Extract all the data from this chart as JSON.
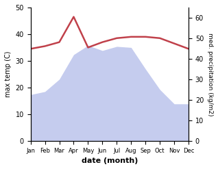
{
  "months": [
    "Jan",
    "Feb",
    "Mar",
    "Apr",
    "May",
    "Jun",
    "Jul",
    "Aug",
    "Sep",
    "Oct",
    "Nov",
    "Dec"
  ],
  "temperature": [
    34.5,
    35.5,
    37.0,
    46.5,
    35.0,
    37.0,
    38.5,
    39.0,
    39.0,
    38.5,
    36.5,
    34.5
  ],
  "precipitation": [
    22.5,
    24.0,
    30.0,
    42.0,
    46.5,
    44.0,
    46.0,
    45.5,
    35.0,
    25.0,
    18.0,
    18.0
  ],
  "temp_color": "#c0404a",
  "precip_fill_color": "#c5ccee",
  "ylabel_left": "max temp (C)",
  "ylabel_right": "med. precipitation (kg/m2)",
  "xlabel": "date (month)",
  "ylim_left": [
    0,
    50
  ],
  "ylim_right": [
    0,
    65
  ],
  "yticks_left": [
    0,
    10,
    20,
    30,
    40,
    50
  ],
  "yticks_right": [
    0,
    10,
    20,
    30,
    40,
    50,
    60
  ],
  "background_color": "#ffffff",
  "precip_scale_factor": 0.7692
}
